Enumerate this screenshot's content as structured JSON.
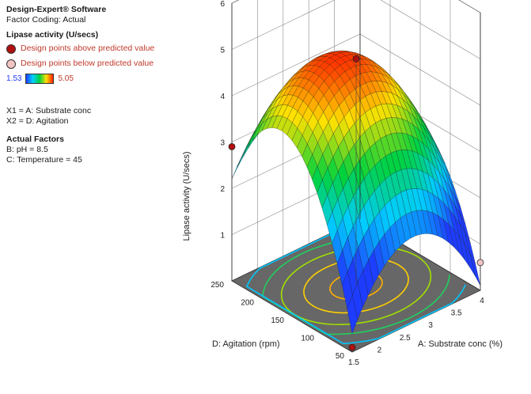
{
  "header": {
    "software": "Design-Expert® Software",
    "coding": "Factor Coding: Actual"
  },
  "response": {
    "title": "Lipase activity (U/secs)",
    "above": "Design points above predicted value",
    "below": "Design points below predicted value",
    "min": "1.53",
    "max": "5.05",
    "colors": {
      "low": "#1e3cff",
      "mid": "#00d040",
      "high": "#ff2000",
      "above_point": "#b01010",
      "below_point": "#f3c4c4"
    }
  },
  "factors": {
    "x1": "X1 = A: Substrate conc",
    "x2": "X2 = D: Agitation",
    "actual_title": "Actual Factors",
    "b": "B: pH = 8.5",
    "c": "C: Temperature = 45"
  },
  "chart_data": {
    "type": "surface3d",
    "xlabel": "A: Substrate conc (%)",
    "ylabel": "D: Agitation (rpm)",
    "zlabel": "Lipase activity (U/secs)",
    "x_ticks": [
      "1.5",
      "2",
      "2.5",
      "3",
      "3.5",
      "4"
    ],
    "y_ticks": [
      "50",
      "100",
      "150",
      "200",
      "250"
    ],
    "z_ticks": [
      "1",
      "2",
      "3",
      "4",
      "5",
      "6"
    ],
    "xlim": [
      1.5,
      4
    ],
    "ylim": [
      50,
      250
    ],
    "zlim": [
      0,
      6
    ],
    "surface_z_range": [
      1.53,
      5.05
    ],
    "design_points": [
      {
        "x": 2.75,
        "y": 150,
        "z": 4.9,
        "type": "above"
      },
      {
        "x": 1.5,
        "y": 250,
        "z": 2.9,
        "type": "above"
      },
      {
        "x": 1.5,
        "y": 50,
        "z": 0.1,
        "type": "above"
      },
      {
        "x": 4,
        "y": 50,
        "z": 0.6,
        "type": "below"
      }
    ]
  }
}
